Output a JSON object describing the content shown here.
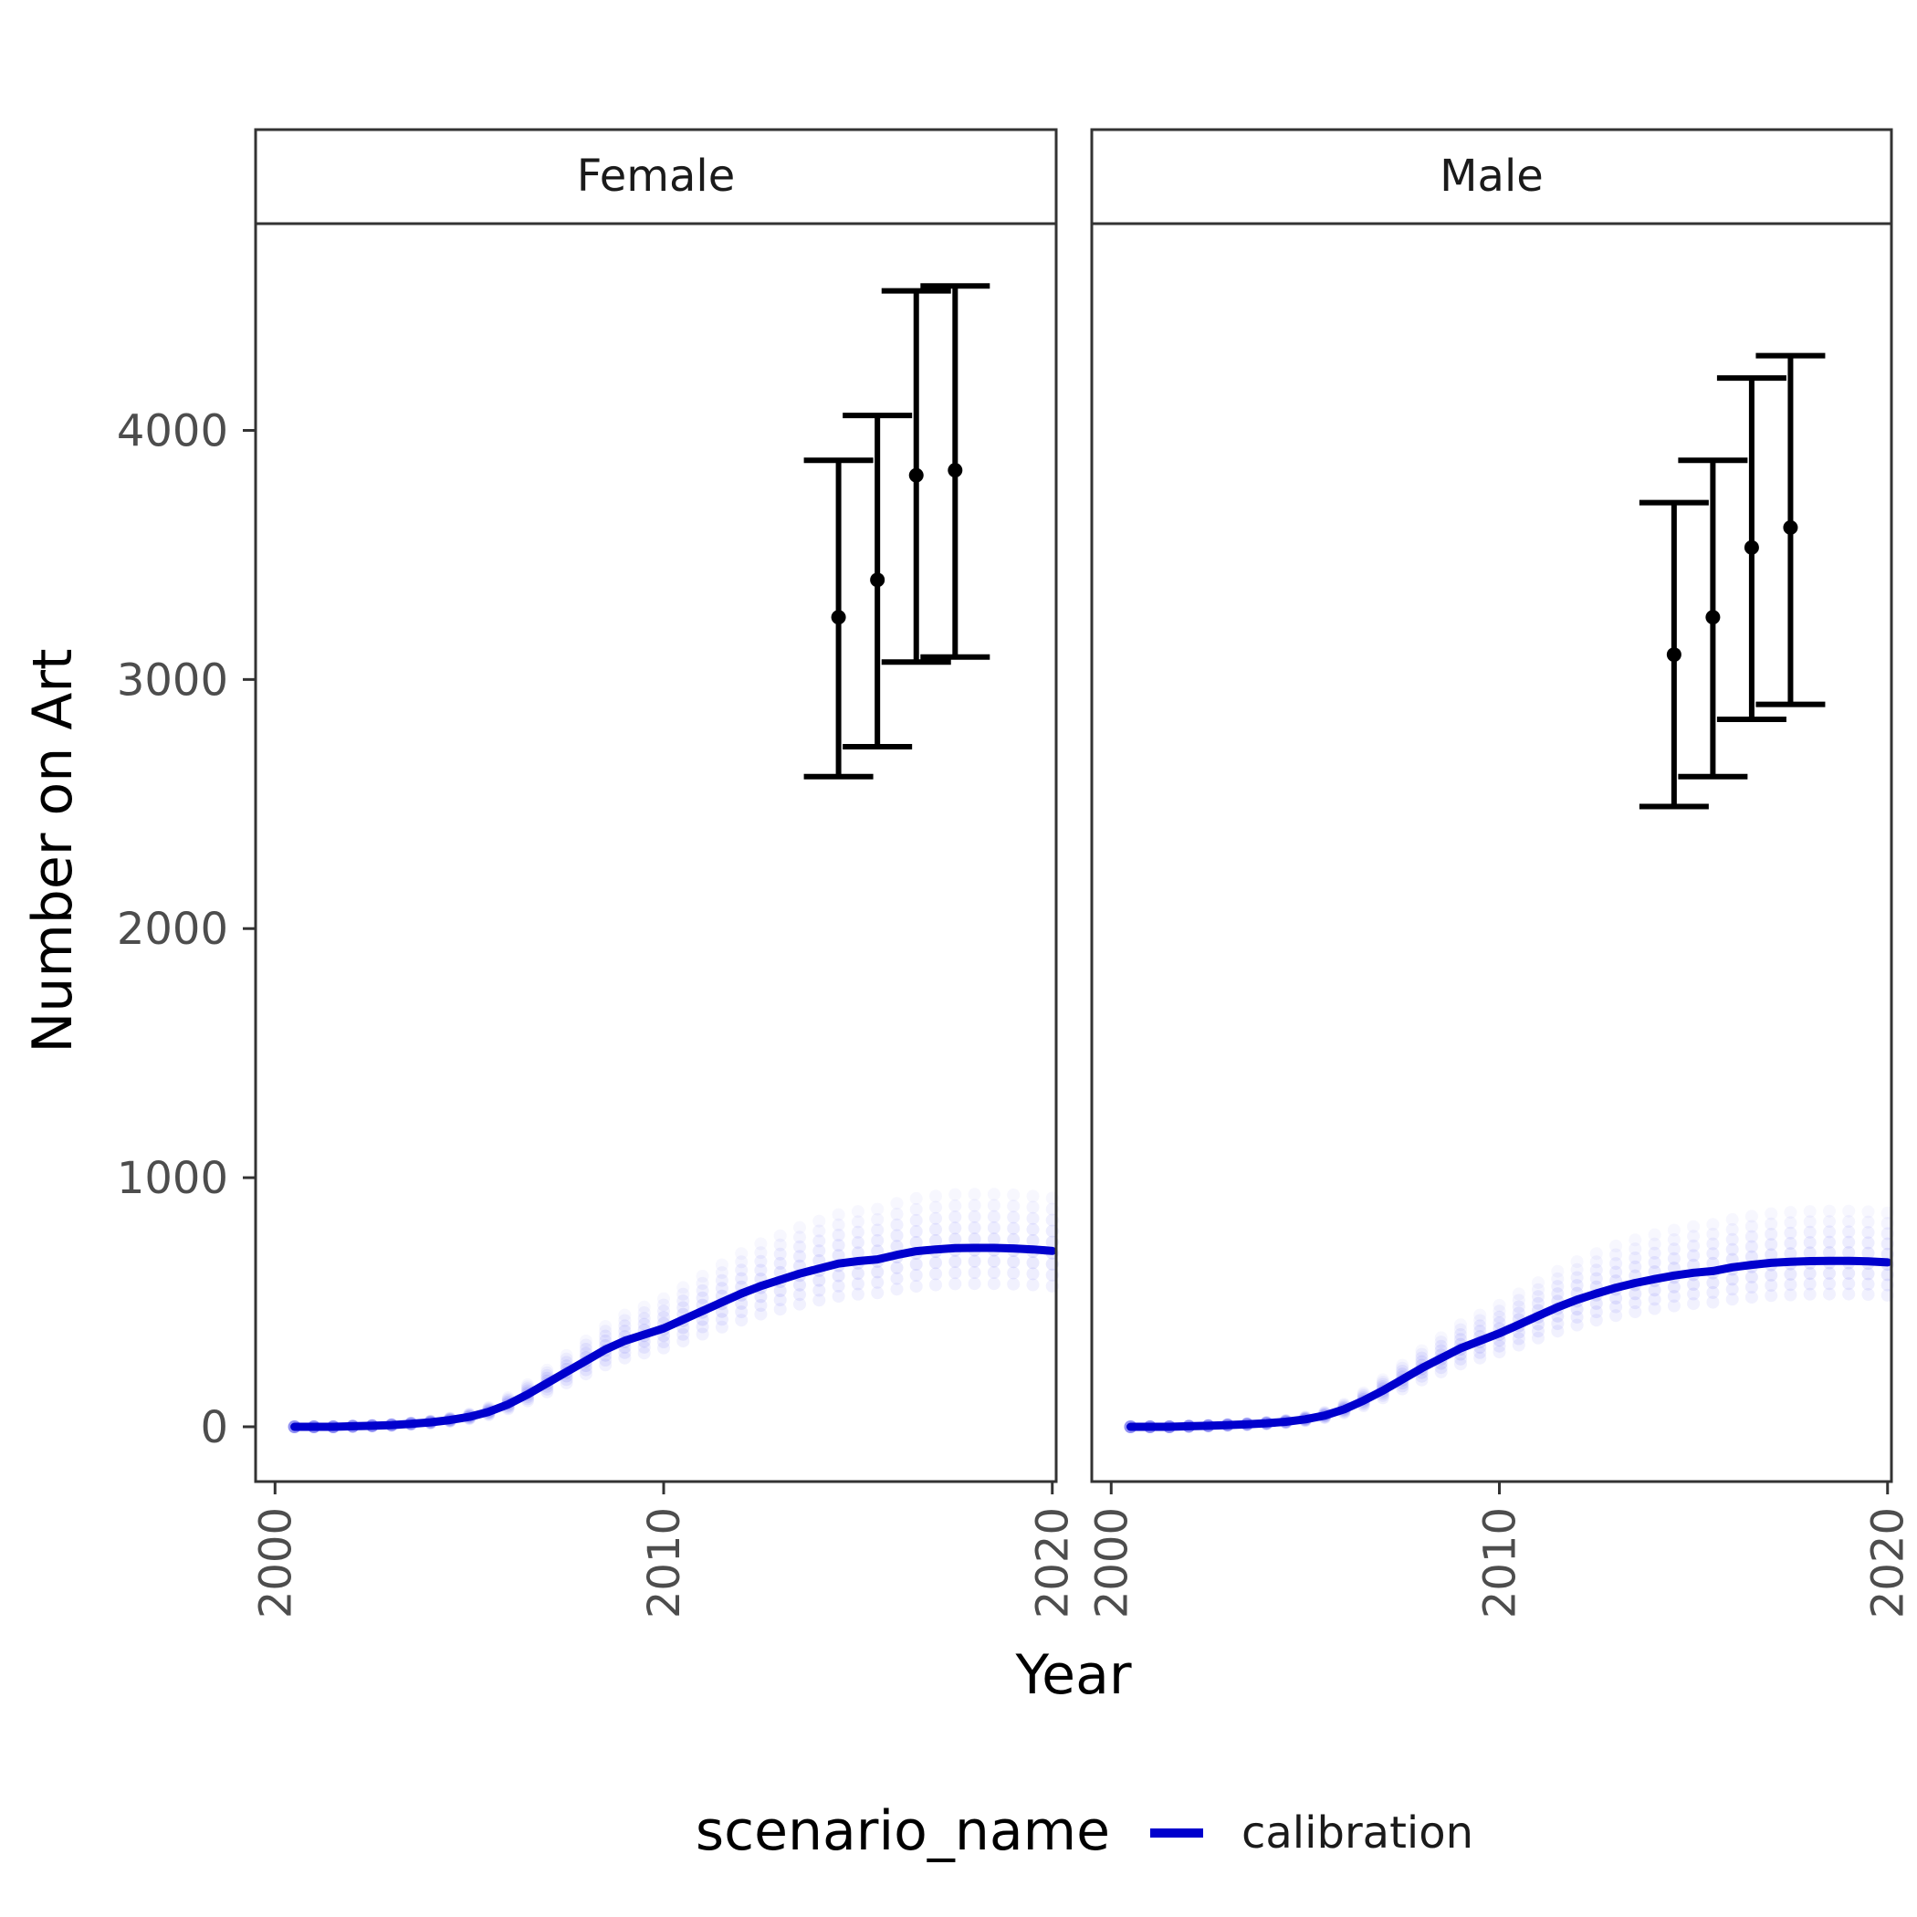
{
  "chart_data": {
    "type": "line",
    "title": "",
    "xlabel": "Year",
    "ylabel": "Number on Art",
    "xlim": [
      1999.5,
      2020.1
    ],
    "ylim": [
      -220,
      4830
    ],
    "x_ticks": [
      2000,
      2010,
      2020
    ],
    "y_ticks": [
      0,
      1000,
      2000,
      3000,
      4000
    ],
    "grid": false,
    "legend": {
      "title": "scenario_name",
      "position": "bottom",
      "items": [
        {
          "label": "calibration",
          "color": "#0000CD"
        }
      ]
    },
    "series_colors": {
      "calibration": "#0000CD",
      "band": "#3C3CF0",
      "targets": "#000000"
    },
    "panels": [
      {
        "strip_label": "Female",
        "series": [
          {
            "name": "calibration",
            "x": [
              2000.5,
              2001,
              2001.5,
              2002,
              2002.5,
              2003,
              2003.5,
              2004,
              2004.5,
              2005,
              2005.5,
              2006,
              2006.5,
              2007,
              2007.5,
              2008,
              2008.5,
              2009,
              2009.5,
              2010,
              2010.5,
              2011,
              2011.5,
              2012,
              2012.5,
              2013,
              2013.5,
              2014,
              2014.5,
              2015,
              2015.5,
              2016,
              2016.5,
              2017,
              2017.5,
              2018,
              2018.5,
              2019,
              2019.5,
              2020
            ],
            "y": [
              0,
              0,
              0,
              2,
              4,
              7,
              12,
              18,
              27,
              40,
              60,
              90,
              130,
              175,
              220,
              265,
              310,
              345,
              370,
              395,
              430,
              465,
              500,
              535,
              565,
              590,
              615,
              635,
              655,
              665,
              672,
              690,
              705,
              712,
              717,
              718,
              718,
              716,
              712,
              706
            ]
          }
        ],
        "uncertainty_band": {
          "lower_fraction": 0.8,
          "upper_fraction": 1.3
        },
        "targets": [
          {
            "x": 2014.5,
            "y": 3250,
            "ymin": 2610,
            "ymax": 3880
          },
          {
            "x": 2015.5,
            "y": 3400,
            "ymin": 2730,
            "ymax": 4060
          },
          {
            "x": 2016.5,
            "y": 3820,
            "ymin": 3070,
            "ymax": 4560
          },
          {
            "x": 2017.5,
            "y": 3840,
            "ymin": 3090,
            "ymax": 4580
          }
        ]
      },
      {
        "strip_label": "Male",
        "series": [
          {
            "name": "calibration",
            "x": [
              2000.5,
              2001,
              2001.5,
              2002,
              2002.5,
              2003,
              2003.5,
              2004,
              2004.5,
              2005,
              2005.5,
              2006,
              2006.5,
              2007,
              2007.5,
              2008,
              2008.5,
              2009,
              2009.5,
              2010,
              2010.5,
              2011,
              2011.5,
              2012,
              2012.5,
              2013,
              2013.5,
              2014,
              2014.5,
              2015,
              2015.5,
              2016,
              2016.5,
              2017,
              2017.5,
              2018,
              2018.5,
              2019,
              2019.5,
              2020
            ],
            "y": [
              0,
              0,
              0,
              2,
              4,
              7,
              10,
              14,
              20,
              30,
              45,
              70,
              105,
              145,
              190,
              235,
              275,
              315,
              345,
              375,
              410,
              445,
              480,
              510,
              535,
              558,
              577,
              593,
              607,
              618,
              625,
              640,
              650,
              658,
              662,
              665,
              666,
              666,
              664,
              660
            ]
          }
        ],
        "uncertainty_band": {
          "lower_fraction": 0.8,
          "upper_fraction": 1.3
        },
        "targets": [
          {
            "x": 2014.5,
            "y": 3100,
            "ymin": 2490,
            "ymax": 3710
          },
          {
            "x": 2015.5,
            "y": 3250,
            "ymin": 2610,
            "ymax": 3880
          },
          {
            "x": 2016.5,
            "y": 3530,
            "ymin": 2840,
            "ymax": 4210
          },
          {
            "x": 2017.5,
            "y": 3610,
            "ymin": 2900,
            "ymax": 4300
          }
        ]
      }
    ]
  }
}
